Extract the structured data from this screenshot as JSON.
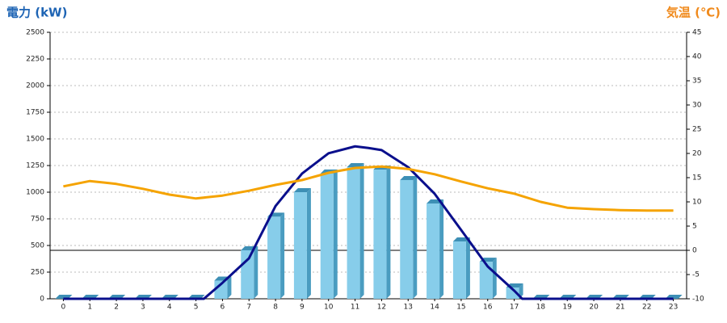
{
  "chart_data": {
    "type": "bar-line-combo",
    "title_left": "電力 (kW)",
    "title_left_color": "#1e64b4",
    "title_right": "気温 (℃)",
    "title_right_color": "#f08a1c",
    "categories": [
      "0",
      "1",
      "2",
      "3",
      "4",
      "5",
      "6",
      "7",
      "8",
      "9",
      "10",
      "11",
      "12",
      "13",
      "14",
      "15",
      "16",
      "17",
      "18",
      "19",
      "20",
      "21",
      "22",
      "23"
    ],
    "ylim": [
      0,
      2500
    ],
    "yticks": [
      0,
      250,
      500,
      750,
      1000,
      1250,
      1500,
      1750,
      2000,
      2250,
      2500
    ],
    "y2lim": [
      -10,
      45
    ],
    "y2ticks": [
      -10,
      -5,
      0,
      5,
      10,
      15,
      20,
      25,
      30,
      35,
      40,
      45
    ],
    "grid": true,
    "series": [
      {
        "type": "bar",
        "color": "#87cdea",
        "values": [
          0,
          0,
          0,
          0,
          0,
          0,
          170,
          455,
          770,
          1000,
          1175,
          1235,
          1212,
          1114,
          894,
          538,
          348,
          106,
          0,
          0,
          0,
          0,
          0,
          0
        ]
      },
      {
        "type": "line",
        "color": "#0a0f8c",
        "x": [
          0,
          5,
          5.3,
          6,
          7,
          8,
          9,
          10,
          11,
          11.5,
          12,
          13,
          14,
          15,
          16,
          17,
          17.3,
          23
        ],
        "values": [
          0,
          0,
          0,
          150,
          380,
          870,
          1175,
          1365,
          1430,
          1415,
          1395,
          1235,
          985,
          645,
          303,
          76,
          0,
          0
        ]
      },
      {
        "type": "line",
        "axis": "y2",
        "color": "#f5a300",
        "values": [
          13.2,
          14.3,
          13.7,
          12.7,
          11.5,
          10.7,
          11.3,
          12.3,
          13.5,
          14.5,
          16,
          17,
          17.3,
          16.8,
          15.7,
          14.2,
          12.8,
          11.7,
          10,
          8.8,
          8.5,
          8.3,
          8.2,
          8.2
        ]
      }
    ]
  }
}
